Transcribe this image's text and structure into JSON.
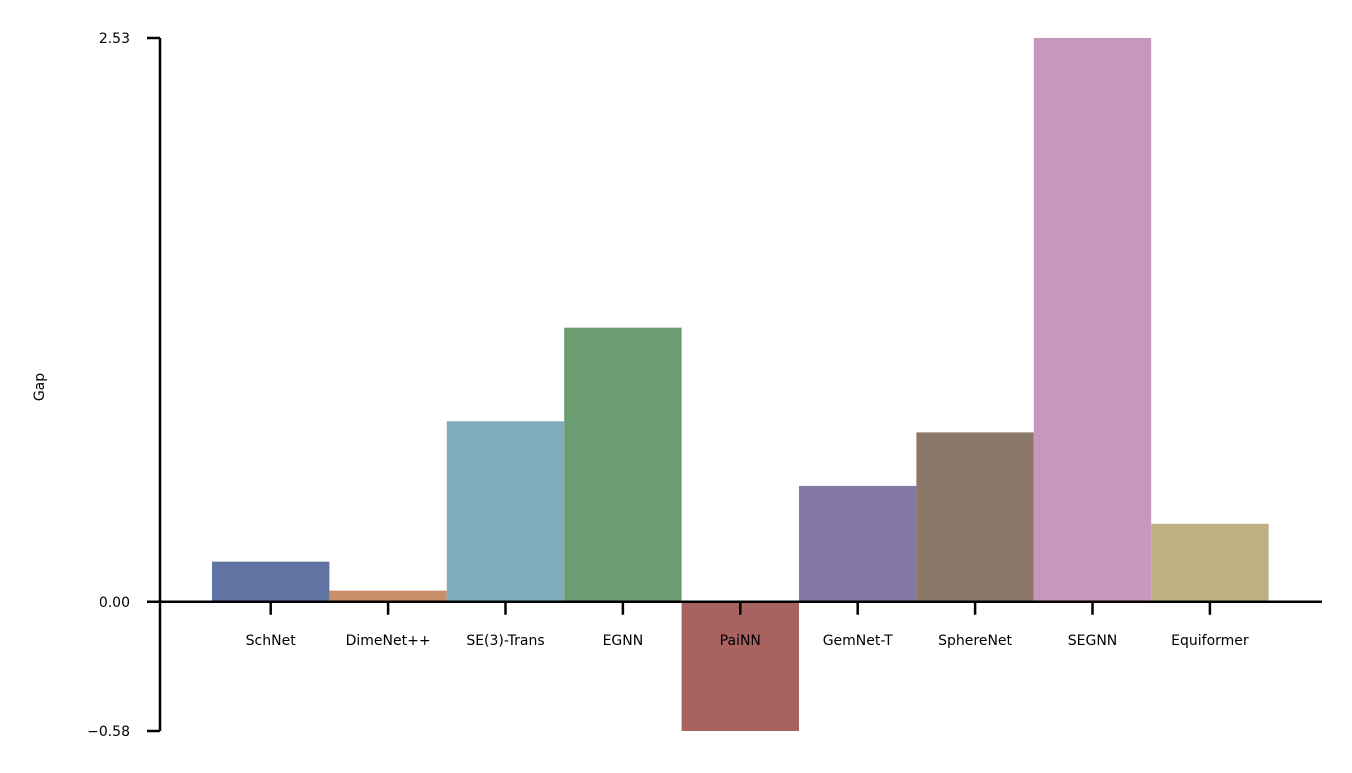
{
  "chart_data": {
    "type": "bar",
    "title": "",
    "xlabel": "",
    "ylabel": "Gap",
    "categories": [
      "SchNet",
      "DimeNet++",
      "SE(3)-Trans",
      "EGNN",
      "PaiNN",
      "GemNet-T",
      "SphereNet",
      "SEGNN",
      "Equiformer"
    ],
    "values": [
      0.18,
      0.05,
      0.81,
      1.23,
      -0.58,
      0.52,
      0.76,
      2.53,
      0.35
    ],
    "colors": [
      "#6073a3",
      "#c98e6a",
      "#80acbf",
      "#6c9c71",
      "#a96262",
      "#8479a6",
      "#8b7869",
      "#c797bd",
      "#bfb083"
    ],
    "ylim": [
      -0.58,
      2.53
    ],
    "yticks": [
      -0.58,
      0.0,
      2.53
    ],
    "ytick_labels": [
      "−0.58",
      "0.00",
      "2.53"
    ],
    "grid": false,
    "legend": "none"
  }
}
